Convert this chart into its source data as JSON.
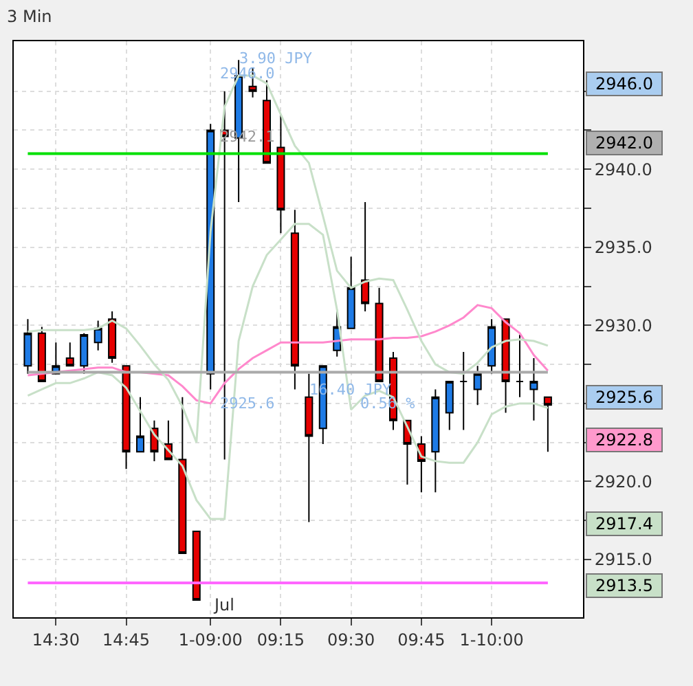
{
  "chart_data": {
    "type": "candlestick",
    "title": "3 Min",
    "categories": [
      null,
      null,
      "14:30",
      null,
      null,
      null,
      null,
      "14:45",
      null,
      null,
      null,
      null,
      null,
      "1-09:00",
      null,
      null,
      null,
      null,
      "09:15",
      null,
      null,
      null,
      null,
      "09:30",
      null,
      null,
      null,
      null,
      "09:45",
      null,
      null,
      null,
      null,
      "1-10:00",
      null,
      null,
      null,
      null
    ],
    "ohlc": [
      [
        2927.4,
        2930.4,
        2926.9,
        2929.5
      ],
      [
        2929.5,
        2929.9,
        2926.4,
        2926.4
      ],
      [
        2926.9,
        2928.9,
        2926.9,
        2927.4
      ],
      [
        2927.9,
        2928.9,
        2927.4,
        2927.4
      ],
      [
        2927.4,
        2929.5,
        2926.9,
        2929.4
      ],
      [
        2928.9,
        2930.3,
        2928.4,
        2929.8
      ],
      [
        2930.4,
        2930.9,
        2927.6,
        2927.9
      ],
      [
        2927.4,
        2927.4,
        2920.8,
        2921.9
      ],
      [
        2921.9,
        2925.4,
        2921.9,
        2922.9
      ],
      [
        2923.4,
        2923.9,
        2921.3,
        2921.9
      ],
      [
        2922.4,
        2923.9,
        2921.4,
        2921.4
      ],
      [
        2921.4,
        2925.4,
        2915.4,
        2915.4
      ],
      [
        2916.8,
        2916.8,
        2912.4,
        2912.4
      ],
      [
        2926.9,
        2942.9,
        2925.9,
        2942.5
      ],
      [
        2942.5,
        2945.0,
        2921.4,
        2942.1
      ],
      [
        2942.0,
        2947.0,
        2937.9,
        2946.0
      ],
      [
        2945.3,
        2946.5,
        2944.6,
        2945.0
      ],
      [
        2944.4,
        2945.7,
        2940.4,
        2940.4
      ],
      [
        2941.4,
        2943.5,
        2935.9,
        2937.4
      ],
      [
        2935.9,
        2937.4,
        2925.9,
        2927.4
      ],
      [
        2925.4,
        2926.9,
        2917.4,
        2922.9
      ],
      [
        2923.4,
        2927.4,
        2922.4,
        2927.4
      ],
      [
        2928.4,
        2931.0,
        2928.0,
        2929.9
      ],
      [
        2929.8,
        2934.4,
        2929.8,
        2932.4
      ],
      [
        2932.9,
        2937.9,
        2930.9,
        2931.4
      ],
      [
        2931.4,
        2932.4,
        2926.4,
        2926.4
      ],
      [
        2927.9,
        2928.3,
        2923.3,
        2923.9
      ],
      [
        2923.9,
        2923.9,
        2919.8,
        2922.4
      ],
      [
        2922.4,
        2922.9,
        2919.3,
        2921.3
      ],
      [
        2921.9,
        2925.9,
        2919.3,
        2925.4
      ],
      [
        2924.4,
        2926.4,
        2923.3,
        2926.4
      ],
      [
        2926.4,
        2928.3,
        2923.3,
        2926.4
      ],
      [
        2925.9,
        2927.4,
        2924.9,
        2926.9
      ],
      [
        2927.4,
        2930.4,
        2926.9,
        2929.9
      ],
      [
        2930.4,
        2930.4,
        2924.4,
        2926.4
      ],
      [
        2926.4,
        2929.4,
        2925.4,
        2926.4
      ],
      [
        2925.9,
        2927.9,
        2923.9,
        2926.4
      ],
      [
        2925.4,
        2925.4,
        2921.9,
        2924.9
      ]
    ],
    "series": [
      {
        "type": "line",
        "color": "#ff88cc",
        "values": [
          2926.8,
          2926.9,
          2927.0,
          2927.1,
          2927.2,
          2927.3,
          2927.3,
          2927.0,
          2927.0,
          2926.9,
          2926.8,
          2926.1,
          2925.2,
          2925.0,
          2926.3,
          2927.2,
          2927.9,
          2928.4,
          2928.9,
          2928.9,
          2928.9,
          2928.9,
          2929.0,
          2929.1,
          2929.1,
          2929.1,
          2929.2,
          2929.2,
          2929.3,
          2929.6,
          2930.0,
          2930.5,
          2931.3,
          2931.1,
          2930.2,
          2929.5,
          2928.1,
          2927.1
        ]
      },
      {
        "type": "line",
        "color": "#c8e0c8",
        "values": [
          2929.6,
          2929.7,
          2929.7,
          2929.7,
          2929.7,
          2929.8,
          2930.3,
          2929.8,
          2928.7,
          2927.5,
          2926.5,
          2924.8,
          2922.5,
          2936.0,
          2944.0,
          2946.0,
          2946.0,
          2945.5,
          2943.5,
          2941.5,
          2940.4,
          2937.0,
          2933.5,
          2932.4,
          2932.8,
          2933.0,
          2932.9,
          2931.0,
          2929.0,
          2927.5,
          2927.0,
          2926.9,
          2927.6,
          2928.6,
          2929.0,
          2929.1,
          2929.0,
          2928.7
        ]
      },
      {
        "type": "line",
        "color": "#c8e0c8",
        "values": [
          2925.5,
          2925.9,
          2926.3,
          2926.3,
          2926.6,
          2927.0,
          2926.8,
          2926.0,
          2924.5,
          2923.0,
          2922.0,
          2921.0,
          2918.8,
          2917.6,
          2917.6,
          2929.0,
          2932.5,
          2934.5,
          2935.5,
          2936.5,
          2936.5,
          2935.8,
          2931.0,
          2924.6,
          2925.5,
          2925.8,
          2925.4,
          2923.5,
          2921.6,
          2921.3,
          2921.2,
          2921.2,
          2922.5,
          2924.3,
          2924.8,
          2925.0,
          2925.0,
          2924.7
        ]
      }
    ],
    "ref_lines": [
      {
        "axis": "y",
        "value": 2941.0,
        "color": "#00e000"
      },
      {
        "axis": "y",
        "value": 2913.5,
        "color": "#ff66ff"
      },
      {
        "axis": "y",
        "value": 2927.0,
        "color": "#aaaaaa"
      }
    ],
    "ylim": [
      2911.3,
      2948.2
    ],
    "yticks": [
      {
        "value": 2915,
        "label": "2915.0"
      },
      {
        "value": 2917.5,
        "label": null
      },
      {
        "value": 2920,
        "label": "2920.0"
      },
      {
        "value": 2922.5,
        "label": null
      },
      {
        "value": 2925,
        "label": null
      },
      {
        "value": 2927.5,
        "label": null
      },
      {
        "value": 2930,
        "label": "2930.0"
      },
      {
        "value": 2932.5,
        "label": null
      },
      {
        "value": 2935,
        "label": "2935.0"
      },
      {
        "value": 2937.5,
        "label": null
      },
      {
        "value": 2940,
        "label": "2940.0"
      },
      {
        "value": 2942.5,
        "label": null
      },
      {
        "value": 2945,
        "label": null
      }
    ],
    "grid": true,
    "annotations": [
      "Jul",
      "3.90 JPY",
      "2946.0",
      "2942.1",
      "2925.6",
      "16.40 JPY",
      "0.56 %",
      "2946.0",
      "2942.0",
      "2925.6",
      "2922.8",
      "2917.4",
      "2913.5"
    ]
  }
}
